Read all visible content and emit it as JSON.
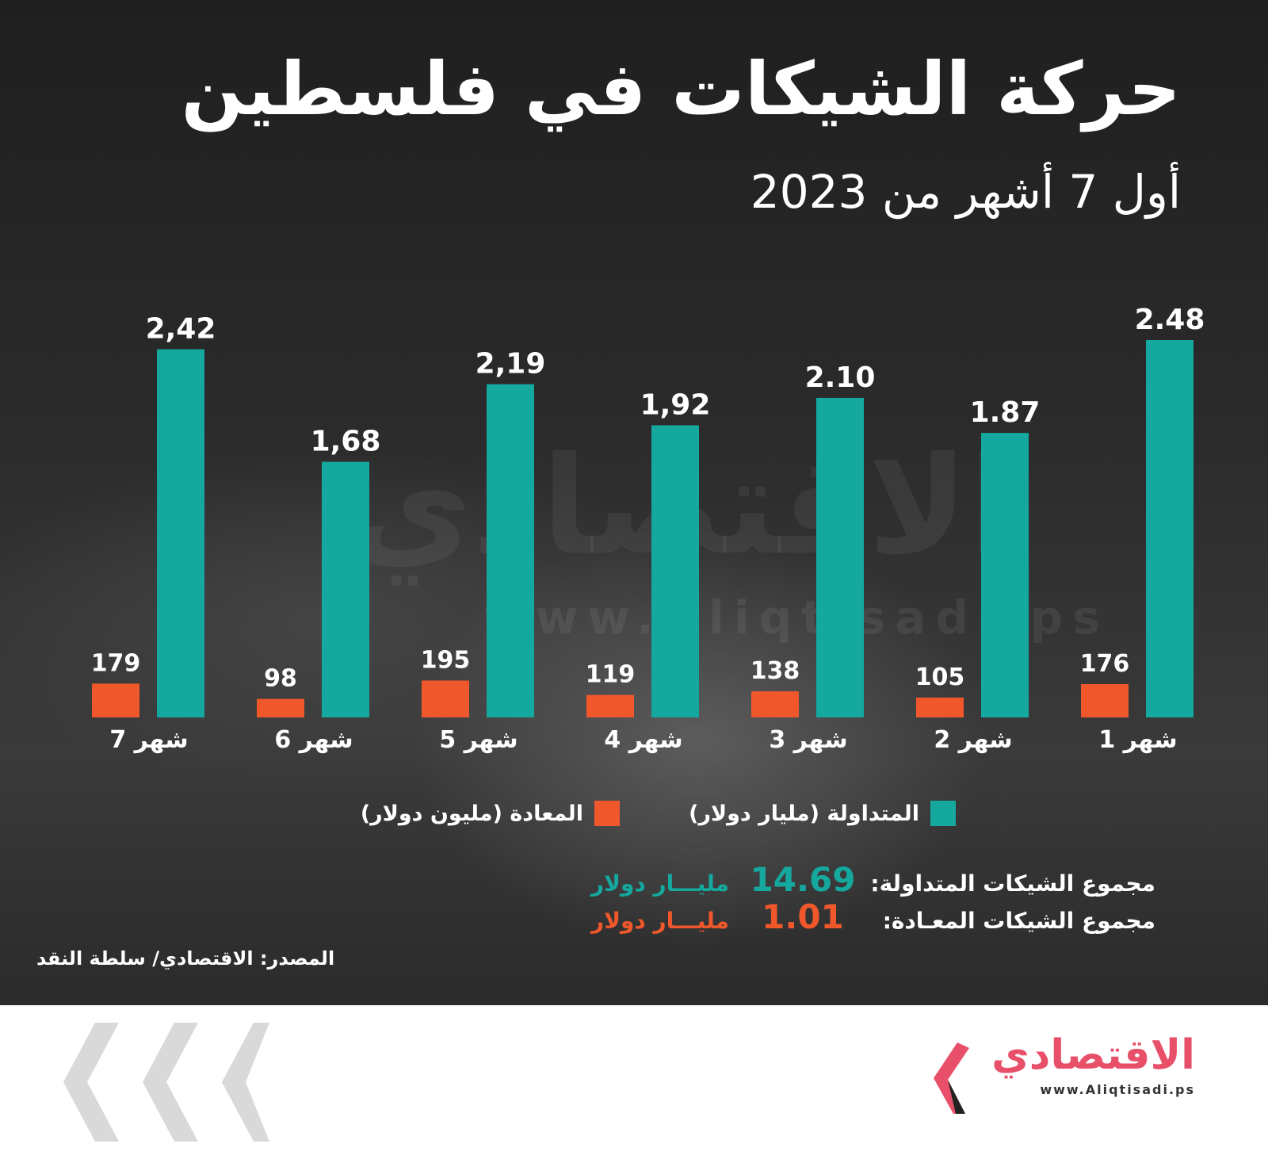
{
  "title": "حركة الشيكات في فلسطين",
  "subtitle": "أول 7 أشهر من 2023",
  "watermark": {
    "text": "الاقتصادي",
    "url": "www.Aliqtisadi.ps"
  },
  "colors": {
    "traded": "#14a89e",
    "returned": "#f0582b",
    "background": "#262626",
    "brand": "#e8506a"
  },
  "chart_data": {
    "type": "bar",
    "categories": [
      "شهر 1",
      "شهر 2",
      "شهر 3",
      "شهر 4",
      "شهر 5",
      "شهر 6",
      "شهر 7"
    ],
    "series": [
      {
        "name": "المتداولة (مليار دولار)",
        "values": [
          2.48,
          1.87,
          2.1,
          1.92,
          2.19,
          1.68,
          2.42
        ],
        "labels": [
          "2.48",
          "1.87",
          "2.10",
          "1,92",
          "2,19",
          "1,68",
          "2,42"
        ],
        "color": "#14a89e"
      },
      {
        "name": "المعادة (مليون دولار)",
        "values": [
          176,
          105,
          138,
          119,
          195,
          98,
          179
        ],
        "labels": [
          "176",
          "105",
          "138",
          "119",
          "195",
          "98",
          "179"
        ],
        "color": "#f0582b"
      }
    ],
    "category_order": "right-to-left",
    "legend_position": "bottom"
  },
  "legend": {
    "traded": "المتداولة (مليار دولار)",
    "returned": "المعادة (مليون دولار)"
  },
  "totals": {
    "traded": {
      "label": "مجموع الشيكات المتداولة:",
      "value": "14.69",
      "unit": "مليـــار دولار"
    },
    "returned": {
      "label": "مجموع الشيكات المعـادة:",
      "value": "1.01",
      "unit": "مليـــار دولار"
    }
  },
  "source": "المصدر: الاقتصادي/ سلطة النقد",
  "brand": {
    "name": "الاقتصادي",
    "url": "www.Aliqtisadi.ps"
  }
}
